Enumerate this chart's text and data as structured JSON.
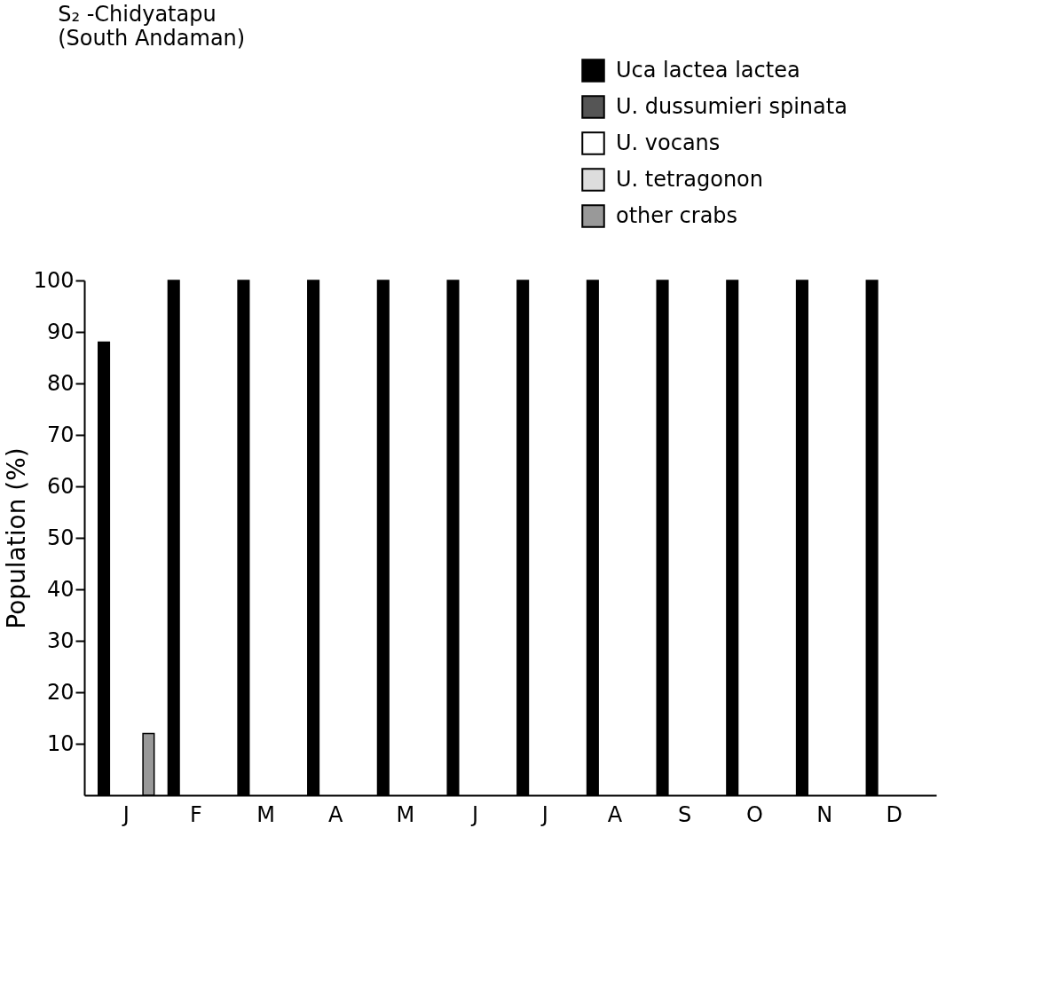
{
  "chart_data": {
    "type": "bar",
    "title": "S₂ -Chidyatapu",
    "subtitle": "(South Andaman)",
    "ylabel": "Population (%)",
    "categories": [
      "J",
      "F",
      "M",
      "A",
      "M",
      "J",
      "J",
      "A",
      "S",
      "O",
      "N",
      "D"
    ],
    "series": [
      {
        "name": "Uca lactea lactea",
        "color": "#000000",
        "values": [
          88,
          100,
          100,
          100,
          100,
          100,
          100,
          100,
          100,
          100,
          100,
          100
        ]
      },
      {
        "name": "U. dussumieri spinata",
        "color": "#555555",
        "values": [
          null,
          null,
          null,
          null,
          null,
          null,
          null,
          null,
          null,
          null,
          null,
          null
        ]
      },
      {
        "name": "U. vocans",
        "color": "#ffffff",
        "values": [
          null,
          null,
          null,
          null,
          null,
          null,
          null,
          null,
          null,
          null,
          null,
          null
        ]
      },
      {
        "name": "U. tetragonon",
        "color": "#dddddd",
        "values": [
          null,
          null,
          null,
          null,
          null,
          null,
          null,
          null,
          null,
          null,
          null,
          null
        ]
      },
      {
        "name": "other crabs",
        "color": "#999999",
        "values": [
          12,
          null,
          null,
          null,
          null,
          null,
          null,
          null,
          null,
          null,
          null,
          null
        ]
      }
    ],
    "ylim": [
      0,
      100
    ],
    "yticks": [
      10,
      20,
      30,
      40,
      50,
      60,
      70,
      80,
      90,
      100
    ],
    "grid": false,
    "legend": "top right"
  }
}
